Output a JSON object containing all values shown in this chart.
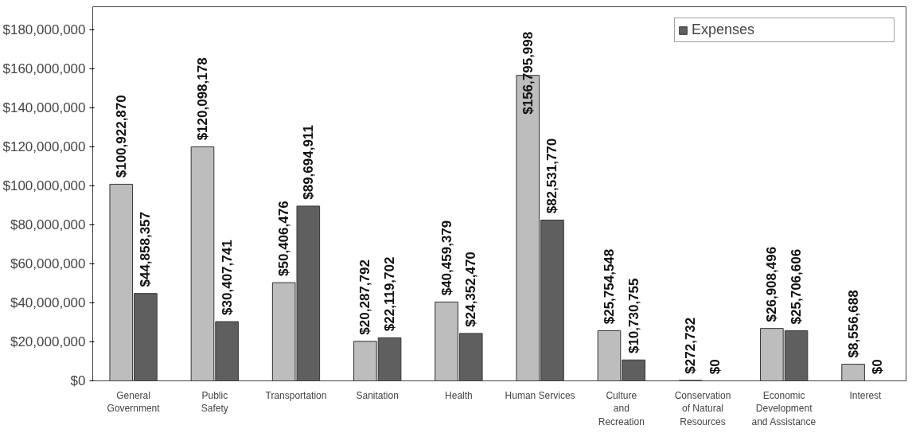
{
  "chart_data": {
    "type": "bar",
    "categories": [
      "General\nGovernment",
      "Public\nSafety",
      "Transportation",
      "Sanitation",
      "Health",
      "Human Services",
      "Culture\nand\nRecreation",
      "Conservation\nof Natural\nResources",
      "Economic\nDevelopment\nand Assistance",
      "Interest"
    ],
    "series": [
      {
        "color": "#bdbdbd",
        "values": [
          100922870,
          120098178,
          50406476,
          20287792,
          40459379,
          156795998,
          25754548,
          272732,
          26908496,
          8556688
        ],
        "value_labels": [
          "$100,922,870",
          "$120,098,178",
          "$50,406,476",
          "$20,287,792",
          "$40,459,379",
          "$156,795,998",
          "$25,754,548",
          "$272,732",
          "$26,908,496",
          "$8,556,688"
        ]
      },
      {
        "name": "Expenses",
        "color": "#5f5f5f",
        "values": [
          44858357,
          30407741,
          89694911,
          22119702,
          24352470,
          82531770,
          10730755,
          0,
          25706606,
          0
        ],
        "value_labels": [
          "$44,858,357",
          "$30,407,741",
          "$89,694,911",
          "$22,119,702",
          "$24,352,470",
          "$82,531,770",
          "$10,730,755",
          "$0",
          "$25,706,606",
          "$0"
        ]
      }
    ],
    "ylim": [
      0,
      192000000
    ],
    "yticks": [
      {
        "value": 0,
        "label": "$0"
      },
      {
        "value": 20000000,
        "label": "$20,000,000"
      },
      {
        "value": 40000000,
        "label": "$40,000,000"
      },
      {
        "value": 60000000,
        "label": "$60,000,000"
      },
      {
        "value": 80000000,
        "label": "$80,000,000"
      },
      {
        "value": 100000000,
        "label": "$100,000,000"
      },
      {
        "value": 120000000,
        "label": "$120,000,000"
      },
      {
        "value": 140000000,
        "label": "$140,000,000"
      },
      {
        "value": 160000000,
        "label": "$160,000,000"
      },
      {
        "value": 180000000,
        "label": "$180,000,000"
      }
    ],
    "legend": "top right"
  }
}
